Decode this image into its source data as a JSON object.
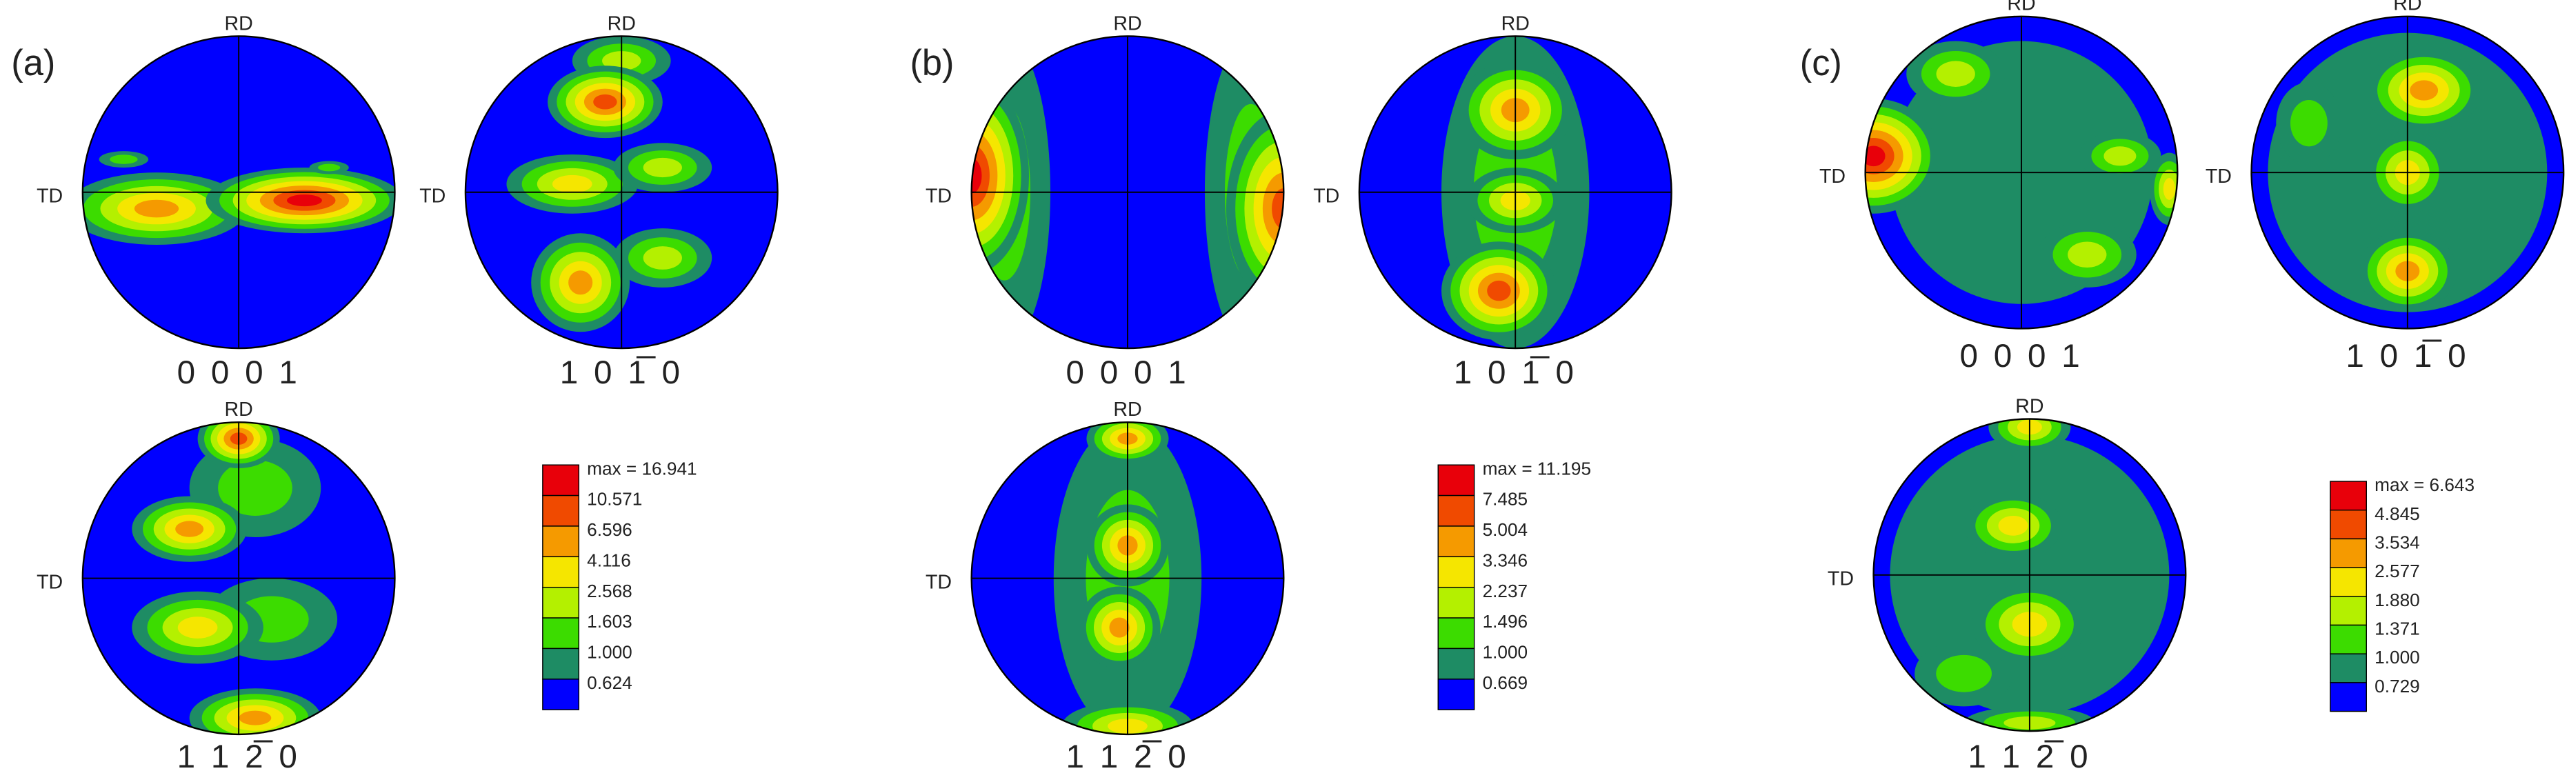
{
  "panels": [
    {
      "label": "(a)",
      "pole_figures": [
        {
          "rd": "RD",
          "td": "TD",
          "index": "0 0 0 1"
        },
        {
          "rd": "RD",
          "td": "TD",
          "index": "1 0 1̅ 0"
        },
        {
          "rd": "RD",
          "td": "TD",
          "index": "1 1 2̅ 0"
        }
      ],
      "legend": {
        "items": [
          {
            "label": "max = 16.941",
            "color": "#e8000a"
          },
          {
            "label": "10.571",
            "color": "#f04a00"
          },
          {
            "label": "6.596",
            "color": "#f59a00"
          },
          {
            "label": "4.116",
            "color": "#f5e600"
          },
          {
            "label": "2.568",
            "color": "#b4f000"
          },
          {
            "label": "1.603",
            "color": "#3cdc00"
          },
          {
            "label": "1.000",
            "color": "#1e8c64"
          },
          {
            "label": "0.624",
            "color": "#0000ff"
          }
        ]
      }
    },
    {
      "label": "(b)",
      "pole_figures": [
        {
          "rd": "RD",
          "td": "TD",
          "index": "0 0 0 1"
        },
        {
          "rd": "RD",
          "td": "TD",
          "index": "1 0 1̅ 0"
        },
        {
          "rd": "RD",
          "td": "TD",
          "index": "1 1 2̅ 0"
        }
      ],
      "legend": {
        "items": [
          {
            "label": "max = 11.195",
            "color": "#e8000a"
          },
          {
            "label": "7.485",
            "color": "#f04a00"
          },
          {
            "label": "5.004",
            "color": "#f59a00"
          },
          {
            "label": "3.346",
            "color": "#f5e600"
          },
          {
            "label": "2.237",
            "color": "#b4f000"
          },
          {
            "label": "1.496",
            "color": "#3cdc00"
          },
          {
            "label": "1.000",
            "color": "#1e8c64"
          },
          {
            "label": "0.669",
            "color": "#0000ff"
          }
        ]
      }
    },
    {
      "label": "(c)",
      "pole_figures": [
        {
          "rd": "RD",
          "td": "TD",
          "index": "0 0 0 1"
        },
        {
          "rd": "RD",
          "td": "TD",
          "index": "1 0 1̅ 0"
        },
        {
          "rd": "RD",
          "td": "TD",
          "index": "1 1 2̅ 0"
        }
      ],
      "legend": {
        "items": [
          {
            "label": "max = 6.643",
            "color": "#e8000a"
          },
          {
            "label": "4.845",
            "color": "#f04a00"
          },
          {
            "label": "3.534",
            "color": "#f59a00"
          },
          {
            "label": "2.577",
            "color": "#f5e600"
          },
          {
            "label": "1.880",
            "color": "#b4f000"
          },
          {
            "label": "1.371",
            "color": "#3cdc00"
          },
          {
            "label": "1.000",
            "color": "#1e8c64"
          },
          {
            "label": "0.729",
            "color": "#0000ff"
          }
        ]
      }
    }
  ]
}
